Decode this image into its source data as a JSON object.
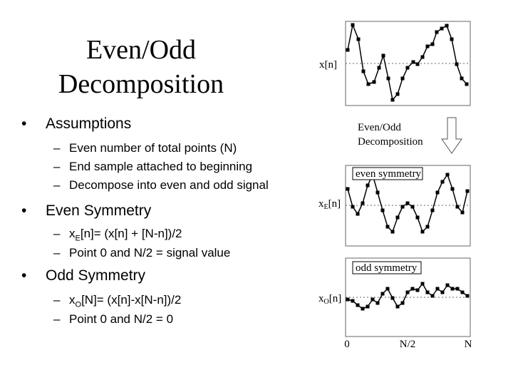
{
  "title": "Even/Odd Decomposition",
  "bullets": [
    {
      "text": "Assumptions",
      "items": [
        {
          "text": "Even number of total points (N)"
        },
        {
          "text": "End sample attached to beginning"
        },
        {
          "text": "Decompose into even and odd signal"
        }
      ]
    },
    {
      "text": "Even Symmetry",
      "items": [
        {
          "base": "x",
          "sub": "E",
          "rest": "[n]= (x[n] + [N-n])/2"
        },
        {
          "text": "Point 0 and N/2 = signal value"
        }
      ]
    },
    {
      "text": "Odd Symmetry",
      "items": [
        {
          "base": "x",
          "sub": "O",
          "rest": "[N]= (x[n]-x[N-n])/2"
        },
        {
          "text": "Point 0 and N/2 = 0"
        }
      ]
    }
  ],
  "figure": {
    "top_label": "x[n]",
    "caption": "Even/Odd Decomposition",
    "even_box": "even symmetry",
    "even_label": {
      "base": "x",
      "sub": "E",
      "rest": "[n]"
    },
    "odd_box": "odd symmetry",
    "odd_label": {
      "base": "x",
      "sub": "O",
      "rest": "[n]"
    },
    "x_labels": [
      "0",
      "N/2",
      "N"
    ]
  }
}
